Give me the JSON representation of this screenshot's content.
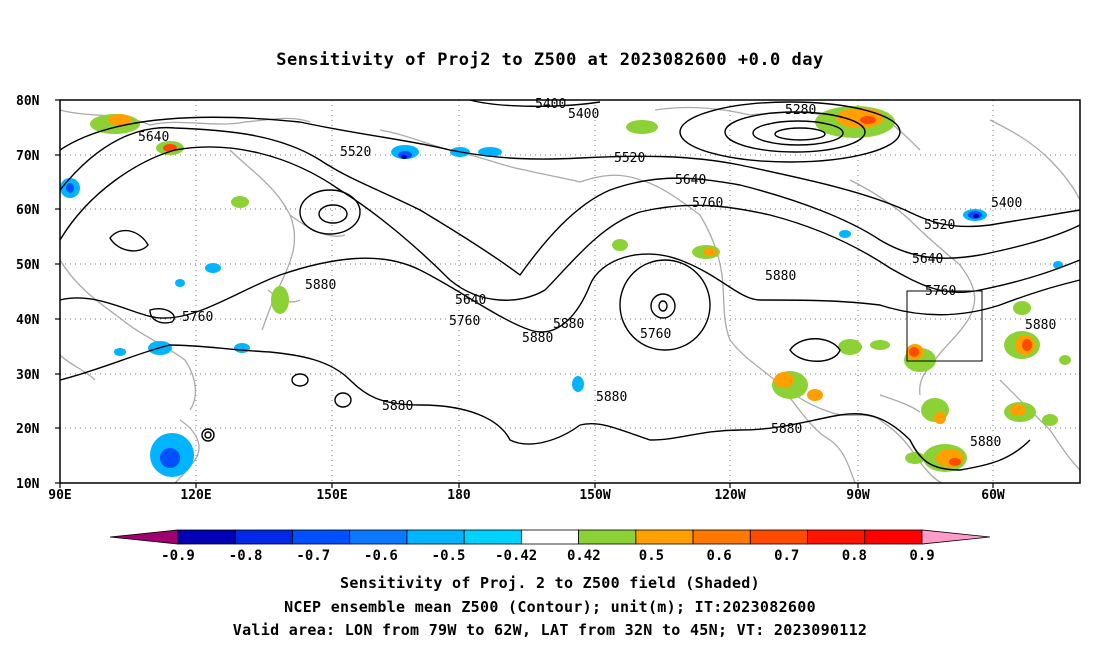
{
  "title": "Sensitivity of Proj2 to Z500 at 2023082600 +0.0 day",
  "map": {
    "lat_ticks": [
      "80N",
      "70N",
      "60N",
      "50N",
      "40N",
      "30N",
      "20N",
      "10N"
    ],
    "lon_ticks": [
      "90E",
      "120E",
      "150E",
      "180",
      "150W",
      "120W",
      "90W",
      "60W"
    ],
    "contour_labels": [
      {
        "text": "5400",
        "lon": "175W",
        "lat": "78N"
      },
      {
        "text": "5400",
        "lon": "169W",
        "lat": "75N"
      },
      {
        "text": "5280",
        "lon": "114W",
        "lat": "76N"
      },
      {
        "text": "5640",
        "lon": "97E",
        "lat": "71N"
      },
      {
        "text": "5520",
        "lon": "162E",
        "lat": "70N"
      },
      {
        "text": "5520",
        "lon": "141W",
        "lat": "68N"
      },
      {
        "text": "5640",
        "lon": "128W",
        "lat": "64N"
      },
      {
        "text": "5760",
        "lon": "125W",
        "lat": "60N"
      },
      {
        "text": "5400",
        "lon": "67W",
        "lat": "61N"
      },
      {
        "text": "5520",
        "lon": "78W",
        "lat": "57N"
      },
      {
        "text": "5640",
        "lon": "79W",
        "lat": "50N"
      },
      {
        "text": "5880",
        "lon": "115W",
        "lat": "47N"
      },
      {
        "text": "5760",
        "lon": "74W",
        "lat": "44N"
      },
      {
        "text": "5880",
        "lon": "150E",
        "lat": "43N"
      },
      {
        "text": "5640",
        "lon": "170W",
        "lat": "41N"
      },
      {
        "text": "5760",
        "lon": "128E",
        "lat": "40N"
      },
      {
        "text": "5760",
        "lon": "176W",
        "lat": "38N"
      },
      {
        "text": "5880",
        "lon": "156W",
        "lat": "38N"
      },
      {
        "text": "5760",
        "lon": "136W",
        "lat": "36N"
      },
      {
        "text": "5880",
        "lon": "163W",
        "lat": "35N"
      },
      {
        "text": "5880",
        "lon": "53W",
        "lat": "38N"
      },
      {
        "text": "5880",
        "lon": "145W",
        "lat": "25N"
      },
      {
        "text": "5880",
        "lon": "168E",
        "lat": "23N"
      },
      {
        "text": "5880",
        "lon": "107W",
        "lat": "20N"
      },
      {
        "text": "5880",
        "lon": "62W",
        "lat": "18N"
      }
    ],
    "validation_box": {
      "lon_from": "79W",
      "lon_to": "62W",
      "lat_from": "32N",
      "lat_to": "45N"
    }
  },
  "colorbar": {
    "labels": [
      "-0.9",
      "-0.8",
      "-0.7",
      "-0.6",
      "-0.5",
      "-0.42",
      "0.42",
      "0.5",
      "0.6",
      "0.7",
      "0.8",
      "0.9"
    ],
    "colors": [
      "#a0006f",
      "#0000b4",
      "#0028e6",
      "#0050ff",
      "#0a78ff",
      "#00b4ff",
      "#00d2ff",
      "#ffffff",
      "#8cd236",
      "#ffa000",
      "#ff7800",
      "#ff4a00",
      "#ff1400",
      "#ff0000",
      "#ff9bc8"
    ]
  },
  "caption": {
    "line1": "Sensitivity of Proj. 2 to Z500 field (Shaded)",
    "line2": "NCEP ensemble mean Z500 (Contour); unit(m); IT:2023082600",
    "line3": "Valid area: LON from 79W to 62W, LAT from 32N to 45N; VT: 2023090112"
  }
}
